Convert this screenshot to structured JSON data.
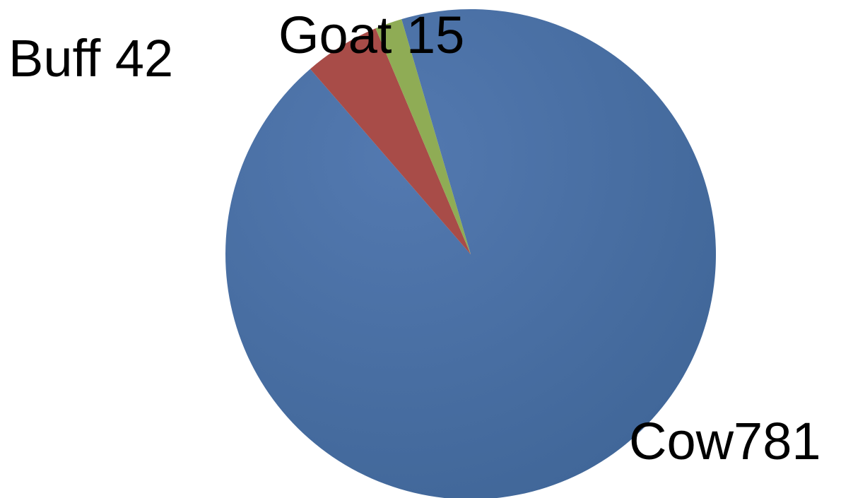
{
  "chart_data": {
    "type": "pie",
    "slices": [
      {
        "label": "Cow",
        "value": 781,
        "display": "Cow781",
        "color": "#4a6fa5"
      },
      {
        "label": "Buff",
        "value": 42,
        "display": "Buff 42",
        "color": "#a84c48"
      },
      {
        "label": "Goat",
        "value": 15,
        "display": "Goat 15",
        "color": "#8fac55"
      }
    ]
  }
}
